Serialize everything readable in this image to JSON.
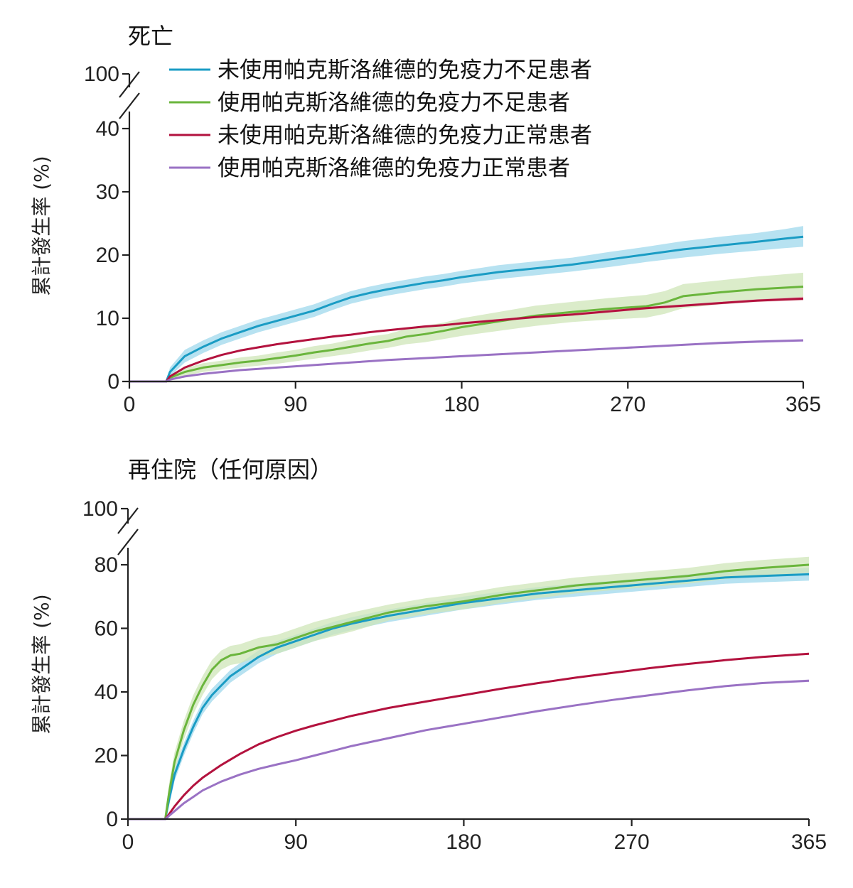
{
  "chart_data": [
    {
      "type": "line",
      "title": "死亡",
      "ylabel": "累計發生率 (%)",
      "xlabel": "",
      "xlim": [
        0,
        365
      ],
      "ylim": [
        0,
        40
      ],
      "axis_break_label": "100",
      "xticks": [
        0,
        90,
        180,
        270,
        365
      ],
      "yticks": [
        0,
        10,
        20,
        30,
        40
      ],
      "grid": false,
      "legend_position": "top-right",
      "series": [
        {
          "name": "未使用帕克斯洛維德的免疫力不足患者",
          "color": "#1a9cc4",
          "band_color": "#9fd8ec",
          "x": [
            0,
            20,
            22,
            30,
            40,
            50,
            60,
            70,
            80,
            90,
            100,
            110,
            120,
            130,
            140,
            150,
            160,
            170,
            180,
            200,
            220,
            240,
            260,
            280,
            300,
            320,
            340,
            355,
            365
          ],
          "y": [
            0,
            0,
            1.5,
            4.0,
            5.5,
            6.8,
            7.8,
            8.8,
            9.6,
            10.4,
            11.2,
            12.3,
            13.3,
            14.0,
            14.6,
            15.1,
            15.6,
            16.0,
            16.5,
            17.3,
            17.9,
            18.5,
            19.3,
            20.1,
            20.9,
            21.5,
            22.1,
            22.6,
            22.9
          ],
          "lower": [
            0,
            0,
            0.8,
            3.0,
            4.5,
            5.8,
            6.8,
            7.8,
            8.6,
            9.4,
            10.2,
            11.3,
            12.3,
            13.0,
            13.6,
            14.1,
            14.6,
            15.0,
            15.5,
            16.2,
            16.8,
            17.4,
            18.1,
            18.9,
            19.6,
            20.2,
            20.7,
            21.1,
            21.3
          ],
          "upper": [
            0,
            0,
            2.2,
            5.0,
            6.5,
            7.8,
            8.8,
            9.8,
            10.6,
            11.4,
            12.2,
            13.3,
            14.3,
            15.0,
            15.6,
            16.1,
            16.6,
            17.0,
            17.5,
            18.4,
            19.0,
            19.6,
            20.5,
            21.3,
            22.2,
            22.9,
            23.5,
            24.1,
            24.6
          ]
        },
        {
          "name": "使用帕克斯洛維德的免疫力不足患者",
          "color": "#6ab53c",
          "band_color": "#cfe6b8",
          "x": [
            0,
            20,
            22,
            30,
            40,
            50,
            60,
            70,
            80,
            90,
            100,
            110,
            120,
            130,
            140,
            150,
            160,
            170,
            180,
            200,
            220,
            240,
            260,
            280,
            290,
            300,
            320,
            340,
            365
          ],
          "y": [
            0,
            0,
            0.6,
            1.5,
            2.2,
            2.6,
            3.0,
            3.3,
            3.7,
            4.1,
            4.6,
            5.0,
            5.5,
            6.0,
            6.4,
            7.1,
            7.5,
            8.0,
            8.6,
            9.5,
            10.4,
            11.0,
            11.5,
            11.9,
            12.5,
            13.5,
            14.1,
            14.6,
            15.0
          ],
          "lower": [
            0,
            0,
            0.2,
            0.9,
            1.5,
            1.9,
            2.2,
            2.5,
            2.8,
            3.2,
            3.6,
            4.0,
            4.4,
            4.9,
            5.3,
            5.9,
            6.2,
            6.7,
            7.2,
            8.0,
            8.8,
            9.4,
            9.8,
            10.1,
            10.7,
            11.6,
            12.2,
            12.6,
            12.9
          ],
          "upper": [
            0,
            0,
            1.0,
            2.1,
            2.9,
            3.3,
            3.8,
            4.1,
            4.6,
            5.0,
            5.6,
            6.0,
            6.6,
            7.1,
            7.5,
            8.3,
            8.8,
            9.3,
            10.0,
            11.0,
            12.0,
            12.6,
            13.2,
            13.7,
            14.3,
            15.4,
            16.0,
            16.6,
            17.2
          ]
        },
        {
          "name": "未使用帕克斯洛維德的免疫力正常患者",
          "color": "#b3123e",
          "band_color": "#e6aab8",
          "x": [
            0,
            20,
            22,
            30,
            40,
            50,
            60,
            70,
            80,
            90,
            100,
            110,
            120,
            130,
            140,
            150,
            160,
            170,
            180,
            200,
            220,
            240,
            260,
            280,
            300,
            320,
            340,
            365
          ],
          "y": [
            0,
            0,
            0.8,
            2.2,
            3.3,
            4.2,
            4.9,
            5.4,
            5.9,
            6.3,
            6.7,
            7.1,
            7.4,
            7.8,
            8.1,
            8.4,
            8.7,
            8.9,
            9.2,
            9.7,
            10.2,
            10.6,
            11.1,
            11.6,
            12.0,
            12.4,
            12.8,
            13.1
          ],
          "lower": [
            0,
            0,
            0.7,
            2.1,
            3.2,
            4.1,
            4.8,
            5.3,
            5.8,
            6.2,
            6.6,
            6.9,
            7.3,
            7.7,
            8.0,
            8.3,
            8.5,
            8.8,
            9.0,
            9.5,
            10.0,
            10.4,
            10.9,
            11.4,
            11.8,
            12.2,
            12.6,
            12.8
          ],
          "upper": [
            0,
            0,
            0.9,
            2.3,
            3.4,
            4.3,
            5.0,
            5.5,
            6.0,
            6.4,
            6.8,
            7.3,
            7.5,
            7.9,
            8.2,
            8.5,
            8.9,
            9.0,
            9.4,
            9.9,
            10.4,
            10.8,
            11.3,
            11.8,
            12.2,
            12.6,
            13.0,
            13.4
          ]
        },
        {
          "name": "使用帕克斯洛維德的免疫力正常患者",
          "color": "#9a72c4",
          "band_color": "#dccdee",
          "x": [
            0,
            20,
            22,
            30,
            40,
            50,
            60,
            70,
            80,
            90,
            100,
            120,
            140,
            160,
            180,
            200,
            220,
            240,
            260,
            280,
            300,
            320,
            340,
            365
          ],
          "y": [
            0,
            0,
            0.3,
            0.8,
            1.2,
            1.5,
            1.8,
            2.0,
            2.2,
            2.4,
            2.6,
            3.0,
            3.4,
            3.7,
            4.0,
            4.3,
            4.6,
            4.9,
            5.2,
            5.5,
            5.8,
            6.1,
            6.3,
            6.5
          ],
          "lower": [
            0,
            0,
            0.2,
            0.7,
            1.1,
            1.4,
            1.7,
            1.9,
            2.1,
            2.3,
            2.5,
            2.9,
            3.3,
            3.6,
            3.9,
            4.2,
            4.5,
            4.8,
            5.1,
            5.4,
            5.7,
            5.9,
            6.1,
            6.3
          ],
          "upper": [
            0,
            0,
            0.4,
            0.9,
            1.3,
            1.6,
            1.9,
            2.1,
            2.3,
            2.5,
            2.7,
            3.1,
            3.5,
            3.8,
            4.1,
            4.4,
            4.7,
            5.0,
            5.3,
            5.6,
            5.9,
            6.3,
            6.5,
            6.7
          ]
        }
      ]
    },
    {
      "type": "line",
      "title": "再住院（任何原因）",
      "ylabel": "累計發生率 (%)",
      "xlabel": "",
      "xlim": [
        0,
        365
      ],
      "ylim": [
        0,
        80
      ],
      "axis_break_label": "100",
      "xticks": [
        0,
        90,
        180,
        270,
        365
      ],
      "yticks": [
        0,
        20,
        40,
        60,
        80
      ],
      "grid": false,
      "series": [
        {
          "name": "未使用帕克斯洛維德的免疫力不足患者",
          "color": "#1a9cc4",
          "band_color": "#9fd8ec",
          "x": [
            0,
            20,
            22,
            25,
            30,
            35,
            40,
            45,
            50,
            55,
            60,
            70,
            80,
            90,
            100,
            110,
            120,
            140,
            160,
            180,
            200,
            220,
            240,
            260,
            280,
            300,
            320,
            340,
            365
          ],
          "y": [
            0,
            0,
            6,
            14,
            22,
            29,
            35,
            39,
            42,
            45,
            47,
            51,
            54,
            56,
            58,
            60,
            61.5,
            64,
            66,
            68,
            69.5,
            71,
            72,
            73,
            74,
            75,
            76,
            76.5,
            77
          ],
          "lower": [
            0,
            0,
            4,
            12,
            20,
            27,
            33,
            37,
            40,
            43,
            45,
            49,
            52,
            54,
            56,
            58,
            59.5,
            62,
            64,
            66,
            67.5,
            69,
            70,
            71,
            72,
            73,
            74,
            74.5,
            75
          ],
          "upper": [
            0,
            0,
            8,
            16,
            24,
            31,
            37,
            41,
            44,
            47,
            49,
            53,
            56,
            58,
            60,
            62,
            63.5,
            66,
            68,
            70,
            71.5,
            73,
            74,
            75,
            76,
            77,
            78,
            78.5,
            79
          ]
        },
        {
          "name": "使用帕克斯洛維德的免疫力不足患者",
          "color": "#6ab53c",
          "band_color": "#cfe6b8",
          "x": [
            0,
            20,
            22,
            25,
            30,
            35,
            40,
            45,
            50,
            55,
            60,
            70,
            80,
            90,
            100,
            110,
            120,
            140,
            160,
            180,
            200,
            220,
            240,
            260,
            280,
            300,
            320,
            340,
            365
          ],
          "y": [
            0,
            0,
            8,
            18,
            28,
            36,
            42,
            47,
            50,
            51.5,
            52,
            54,
            55,
            57,
            59,
            60.5,
            62,
            65,
            67,
            68.5,
            70.5,
            72,
            73.5,
            74.5,
            75.5,
            76.5,
            78,
            79,
            80
          ],
          "lower": [
            0,
            0,
            5,
            15,
            25,
            33,
            39,
            44,
            47,
            48.5,
            49,
            51,
            52,
            54,
            56,
            57.5,
            59,
            62.5,
            64.5,
            66,
            68,
            69.5,
            71,
            72,
            73,
            74,
            75.5,
            76.5,
            77.5
          ],
          "upper": [
            0,
            0,
            11,
            21,
            31,
            39,
            45,
            50,
            53,
            54.5,
            55,
            57,
            58,
            60,
            62,
            63.5,
            65,
            67.5,
            69.5,
            71,
            73,
            74.5,
            76,
            77,
            78,
            79,
            80.5,
            81.5,
            82.5
          ]
        },
        {
          "name": "未使用帕克斯洛維德的免疫力正常患者",
          "color": "#b3123e",
          "band_color": "#e6aab8",
          "x": [
            0,
            20,
            22,
            25,
            30,
            35,
            40,
            50,
            60,
            70,
            80,
            90,
            100,
            110,
            120,
            140,
            160,
            180,
            200,
            220,
            240,
            260,
            280,
            300,
            320,
            340,
            365
          ],
          "y": [
            0,
            0,
            1.5,
            4,
            7.5,
            10.5,
            13,
            17,
            20.5,
            23.5,
            25.8,
            27.8,
            29.5,
            31,
            32.5,
            35,
            37,
            39,
            41,
            42.8,
            44.5,
            46,
            47.5,
            48.8,
            50,
            51,
            52
          ],
          "lower": [
            0,
            0,
            1.3,
            3.8,
            7.3,
            10.3,
            12.8,
            16.8,
            20.3,
            23.3,
            25.6,
            27.6,
            29.3,
            30.8,
            32.3,
            34.8,
            36.8,
            38.8,
            40.8,
            42.6,
            44.3,
            45.8,
            47.3,
            48.6,
            49.8,
            50.7,
            51.7
          ],
          "upper": [
            0,
            0,
            1.7,
            4.2,
            7.7,
            10.7,
            13.2,
            17.2,
            20.7,
            23.7,
            26.0,
            28.0,
            29.7,
            31.2,
            32.7,
            35.2,
            37.2,
            39.2,
            41.2,
            43.0,
            44.7,
            46.2,
            47.7,
            49.0,
            50.2,
            51.3,
            52.3
          ]
        },
        {
          "name": "使用帕克斯洛維德的免疫力正常患者",
          "color": "#9a72c4",
          "band_color": "#dccdee",
          "x": [
            0,
            20,
            22,
            25,
            30,
            35,
            40,
            50,
            60,
            70,
            80,
            90,
            100,
            110,
            120,
            140,
            160,
            180,
            200,
            220,
            240,
            260,
            280,
            300,
            320,
            340,
            365
          ],
          "y": [
            0,
            0,
            1,
            2.5,
            5,
            7,
            9,
            11.8,
            14,
            15.8,
            17.2,
            18.5,
            20,
            21.5,
            23,
            25.5,
            28,
            30,
            32,
            34,
            35.8,
            37.5,
            39,
            40.5,
            41.8,
            42.8,
            43.5
          ],
          "lower": [
            0,
            0,
            0.8,
            2.3,
            4.8,
            6.8,
            8.8,
            11.6,
            13.8,
            15.6,
            17.0,
            18.3,
            19.8,
            21.3,
            22.8,
            25.3,
            27.8,
            29.8,
            31.8,
            33.8,
            35.6,
            37.3,
            38.8,
            40.3,
            41.5,
            42.5,
            43.1
          ],
          "upper": [
            0,
            0,
            1.2,
            2.7,
            5.2,
            7.2,
            9.2,
            12.0,
            14.2,
            16.0,
            17.4,
            18.7,
            20.2,
            21.7,
            23.2,
            25.7,
            28.2,
            30.2,
            32.2,
            34.2,
            36.0,
            37.7,
            39.2,
            40.7,
            42.1,
            43.1,
            43.9
          ]
        }
      ]
    }
  ]
}
